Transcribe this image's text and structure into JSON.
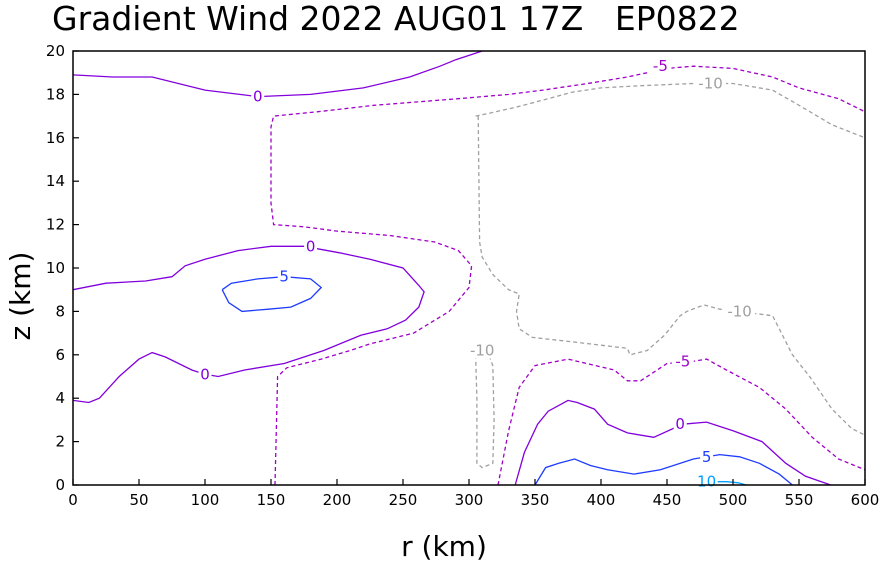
{
  "chart_data": {
    "type": "contour",
    "title": "Gradient Wind 2022 AUG01 17Z   EP0822",
    "xlabel": "r (km)",
    "ylabel": "z (km)",
    "xlim": [
      0,
      600
    ],
    "ylim": [
      0,
      20
    ],
    "x_ticks": [
      "0",
      "50",
      "100",
      "150",
      "200",
      "250",
      "300",
      "350",
      "400",
      "450",
      "500",
      "550",
      "600"
    ],
    "y_ticks": [
      "0",
      "2",
      "4",
      "6",
      "8",
      "10",
      "12",
      "14",
      "16",
      "18",
      "20"
    ],
    "grid": false,
    "colors": {
      "neg10": "#a0a0a0",
      "neg5": "#a000c8",
      "zero": "#8200dc",
      "pos5": "#1e3cff",
      "pos10": "#00a0ff"
    },
    "contours": [
      {
        "level": "0",
        "style": "solid",
        "color_key": "zero",
        "points": [
          [
            0,
            18.9
          ],
          [
            30,
            18.8
          ],
          [
            60,
            18.8
          ],
          [
            100,
            18.2
          ],
          [
            140,
            17.9
          ],
          [
            180,
            18.0
          ],
          [
            220,
            18.3
          ],
          [
            255,
            18.8
          ],
          [
            278,
            19.3
          ],
          [
            290,
            19.6
          ],
          [
            310,
            20.0
          ]
        ],
        "labels": [
          {
            "text": "0",
            "at": [
              140,
              17.9
            ]
          }
        ]
      },
      {
        "level": "-5",
        "style": "dashed",
        "color_key": "neg5",
        "points": [
          [
            153,
            0
          ],
          [
            155,
            5.0
          ],
          [
            162,
            5.4
          ],
          [
            188,
            5.8
          ],
          [
            210,
            6.2
          ],
          [
            225,
            6.5
          ],
          [
            258,
            7.0
          ],
          [
            285,
            8.0
          ],
          [
            300,
            9.1
          ],
          [
            302,
            10.1
          ],
          [
            292,
            10.8
          ],
          [
            274,
            11.2
          ],
          [
            240,
            11.5
          ],
          [
            200,
            11.7
          ],
          [
            175,
            11.9
          ],
          [
            152,
            12.0
          ],
          [
            150,
            13.0
          ],
          [
            150,
            16.5
          ],
          [
            152,
            17.0
          ],
          [
            185,
            17.2
          ],
          [
            228,
            17.5
          ],
          [
            292,
            17.8
          ],
          [
            330,
            18.0
          ],
          [
            356,
            18.2
          ],
          [
            390,
            18.5
          ],
          [
            420,
            18.8
          ],
          [
            450,
            19.2
          ],
          [
            470,
            19.3
          ],
          [
            500,
            19.2
          ],
          [
            530,
            18.8
          ],
          [
            550,
            18.3
          ],
          [
            580,
            17.8
          ],
          [
            600,
            17.2
          ]
        ],
        "labels": [
          {
            "text": "-5",
            "at": [
              445,
              19.3
            ]
          }
        ]
      },
      {
        "level": "0",
        "style": "solid",
        "color_key": "zero",
        "points": [
          [
            0,
            9.0
          ],
          [
            25,
            9.3
          ],
          [
            55,
            9.4
          ],
          [
            75,
            9.6
          ],
          [
            85,
            10.1
          ],
          [
            100,
            10.4
          ],
          [
            125,
            10.8
          ],
          [
            150,
            11.0
          ],
          [
            175,
            11.0
          ],
          [
            202,
            10.7
          ],
          [
            225,
            10.4
          ],
          [
            250,
            10.0
          ],
          [
            262,
            9.2
          ],
          [
            266,
            8.9
          ],
          [
            262,
            8.2
          ],
          [
            252,
            7.6
          ],
          [
            238,
            7.2
          ],
          [
            218,
            6.9
          ],
          [
            190,
            6.2
          ],
          [
            160,
            5.6
          ],
          [
            130,
            5.3
          ],
          [
            110,
            5.0
          ],
          [
            100,
            5.1
          ],
          [
            90,
            5.3
          ],
          [
            70,
            5.9
          ],
          [
            60,
            6.1
          ],
          [
            50,
            5.8
          ],
          [
            35,
            5.0
          ],
          [
            20,
            4.0
          ],
          [
            12,
            3.8
          ],
          [
            0,
            3.9
          ]
        ],
        "labels": [
          {
            "text": "0",
            "at": [
              180,
              11.0
            ]
          },
          {
            "text": "0",
            "at": [
              100,
              5.1
            ]
          }
        ]
      },
      {
        "level": "5",
        "style": "solid",
        "color_key": "pos5",
        "points": [
          [
            113,
            9.0
          ],
          [
            120,
            9.3
          ],
          [
            140,
            9.5
          ],
          [
            160,
            9.6
          ],
          [
            180,
            9.5
          ],
          [
            188,
            9.1
          ],
          [
            180,
            8.6
          ],
          [
            165,
            8.2
          ],
          [
            148,
            8.1
          ],
          [
            128,
            8.0
          ],
          [
            118,
            8.4
          ],
          [
            113,
            9.0
          ]
        ],
        "labels": [
          {
            "text": "5",
            "at": [
              160,
              9.6
            ]
          }
        ]
      },
      {
        "level": "-10",
        "style": "dashed",
        "color_key": "neg10",
        "points": [
          [
            305,
            17.0
          ],
          [
            313,
            17.1
          ],
          [
            335,
            17.4
          ],
          [
            360,
            17.8
          ],
          [
            378,
            18.1
          ],
          [
            400,
            18.3
          ],
          [
            430,
            18.4
          ],
          [
            470,
            18.5
          ],
          [
            500,
            18.5
          ],
          [
            530,
            18.2
          ],
          [
            550,
            17.5
          ],
          [
            575,
            16.6
          ],
          [
            600,
            16.0
          ]
        ],
        "labels": [
          {
            "text": "-10",
            "at": [
              483,
              18.5
            ]
          }
        ]
      },
      {
        "level": "-10",
        "style": "dashed",
        "color_key": "neg10",
        "points": [
          [
            307,
            17.0
          ],
          [
            308,
            11.2
          ],
          [
            310,
            10.5
          ],
          [
            318,
            9.7
          ],
          [
            330,
            9.0
          ],
          [
            338,
            8.8
          ],
          [
            336,
            8.0
          ],
          [
            338,
            7.2
          ],
          [
            348,
            6.8
          ],
          [
            378,
            6.6
          ],
          [
            420,
            6.3
          ],
          [
            422,
            6.0
          ],
          [
            435,
            6.2
          ],
          [
            448,
            6.9
          ],
          [
            460,
            7.8
          ],
          [
            465,
            8.0
          ],
          [
            478,
            8.3
          ],
          [
            490,
            8.1
          ],
          [
            530,
            7.8
          ],
          [
            545,
            6.0
          ],
          [
            558,
            5.0
          ],
          [
            575,
            3.5
          ],
          [
            590,
            2.6
          ],
          [
            600,
            2.3
          ]
        ],
        "labels": [
          {
            "text": "-10",
            "at": [
              505,
              8.0
            ]
          }
        ]
      },
      {
        "level": "-10",
        "style": "dashed",
        "color_key": "neg10",
        "points": [
          [
            305,
            6.0
          ],
          [
            306,
            4.0
          ],
          [
            306,
            1.0
          ],
          [
            310,
            0.8
          ],
          [
            318,
            1.0
          ],
          [
            319,
            3.0
          ],
          [
            318,
            5.5
          ],
          [
            315,
            6.0
          ]
        ],
        "labels": [
          {
            "text": "-10",
            "at": [
              310,
              6.2
            ]
          }
        ]
      },
      {
        "level": "-5",
        "style": "dashed",
        "color_key": "neg5",
        "points": [
          [
            322,
            0
          ],
          [
            330,
            2.5
          ],
          [
            338,
            4.5
          ],
          [
            350,
            5.5
          ],
          [
            375,
            5.8
          ],
          [
            410,
            5.3
          ],
          [
            420,
            4.8
          ],
          [
            430,
            4.8
          ],
          [
            440,
            5.2
          ],
          [
            450,
            5.6
          ],
          [
            470,
            5.7
          ],
          [
            480,
            5.8
          ],
          [
            495,
            5.3
          ],
          [
            520,
            4.5
          ],
          [
            540,
            3.5
          ],
          [
            560,
            2.2
          ],
          [
            580,
            1.2
          ],
          [
            600,
            0.7
          ]
        ],
        "labels": [
          {
            "text": "-5",
            "at": [
              462,
              5.7
            ]
          }
        ]
      },
      {
        "level": "0",
        "style": "solid",
        "color_key": "zero",
        "points": [
          [
            335,
            0
          ],
          [
            342,
            1.5
          ],
          [
            352,
            2.8
          ],
          [
            360,
            3.4
          ],
          [
            375,
            3.9
          ],
          [
            382,
            3.8
          ],
          [
            395,
            3.5
          ],
          [
            405,
            2.8
          ],
          [
            420,
            2.4
          ],
          [
            440,
            2.2
          ],
          [
            462,
            2.8
          ],
          [
            480,
            2.9
          ],
          [
            500,
            2.5
          ],
          [
            522,
            2.0
          ],
          [
            540,
            1.0
          ],
          [
            555,
            0.4
          ],
          [
            574,
            0
          ]
        ],
        "labels": [
          {
            "text": "0",
            "at": [
              460,
              2.8
            ]
          }
        ]
      },
      {
        "level": "5",
        "style": "solid",
        "color_key": "pos5",
        "points": [
          [
            350,
            0
          ],
          [
            358,
            0.8
          ],
          [
            368,
            1.0
          ],
          [
            380,
            1.2
          ],
          [
            392,
            0.9
          ],
          [
            405,
            0.7
          ],
          [
            425,
            0.5
          ],
          [
            445,
            0.7
          ],
          [
            470,
            1.2
          ],
          [
            490,
            1.4
          ],
          [
            505,
            1.3
          ],
          [
            520,
            1.0
          ],
          [
            535,
            0.5
          ],
          [
            545,
            0
          ]
        ],
        "labels": [
          {
            "text": "5",
            "at": [
              480,
              1.3
            ]
          }
        ]
      },
      {
        "level": "10",
        "style": "solid",
        "color_key": "pos10",
        "points": [
          [
            488,
            0.15
          ],
          [
            495,
            0.15
          ],
          [
            504,
            0.1
          ],
          [
            510,
            0.0
          ]
        ],
        "labels": [
          {
            "text": "10",
            "at": [
              480,
              0.15
            ]
          }
        ]
      }
    ]
  }
}
